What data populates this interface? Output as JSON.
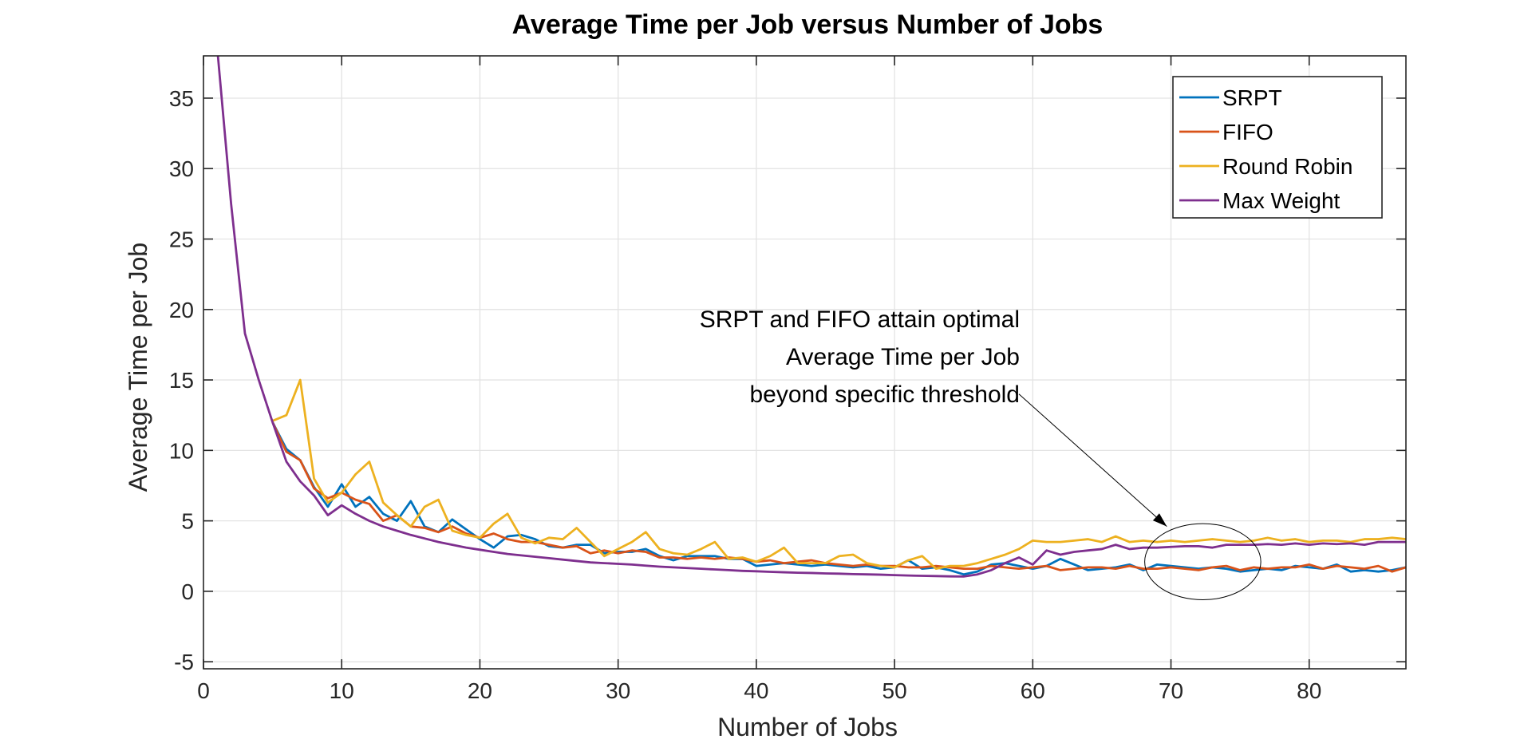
{
  "chart_data": {
    "type": "line",
    "title": "Average Time per Job versus Number of Jobs",
    "xlabel": "Number of Jobs",
    "ylabel": "Average Time per Job",
    "xlim": [
      0,
      87
    ],
    "ylim": [
      -5.5,
      38
    ],
    "xticks": [
      0,
      10,
      20,
      30,
      40,
      50,
      60,
      70,
      80
    ],
    "yticks": [
      -5,
      0,
      5,
      10,
      15,
      20,
      25,
      30,
      35
    ],
    "xtick_labels": [
      "0",
      "10",
      "20",
      "30",
      "40",
      "50",
      "60",
      "70",
      "80"
    ],
    "ytick_labels": [
      "-5",
      "0",
      "5",
      "10",
      "15",
      "20",
      "25",
      "30",
      "35"
    ],
    "grid": true,
    "legend_position": "top-right",
    "x": [
      1,
      2,
      3,
      4,
      5,
      6,
      7,
      8,
      9,
      10,
      11,
      12,
      13,
      14,
      15,
      16,
      17,
      18,
      19,
      20,
      21,
      22,
      23,
      24,
      25,
      26,
      27,
      28,
      29,
      30,
      31,
      32,
      33,
      34,
      35,
      36,
      37,
      38,
      39,
      40,
      41,
      42,
      43,
      44,
      45,
      46,
      47,
      48,
      49,
      50,
      51,
      52,
      53,
      54,
      55,
      56,
      57,
      58,
      59,
      60,
      61,
      62,
      63,
      64,
      65,
      66,
      67,
      68,
      69,
      70,
      71,
      72,
      73,
      74,
      75,
      76,
      77,
      78,
      79,
      80,
      81,
      82,
      83,
      84,
      85,
      86,
      87
    ],
    "series": [
      {
        "name": "SRPT",
        "color": "#0072BD",
        "values": [
          null,
          null,
          null,
          null,
          12.0,
          10.1,
          9.3,
          7.4,
          6.0,
          7.6,
          6.0,
          6.7,
          5.5,
          5.0,
          6.4,
          4.6,
          4.2,
          5.1,
          4.4,
          3.7,
          3.1,
          3.9,
          4.0,
          3.7,
          3.2,
          3.1,
          3.3,
          3.3,
          2.7,
          2.8,
          2.8,
          3.0,
          2.5,
          2.2,
          2.5,
          2.5,
          2.5,
          2.3,
          2.3,
          1.8,
          1.9,
          2.0,
          1.9,
          1.8,
          1.9,
          1.8,
          1.7,
          1.8,
          1.6,
          1.7,
          2.2,
          1.6,
          1.7,
          1.5,
          1.2,
          1.4,
          1.9,
          2.0,
          1.8,
          1.6,
          1.8,
          2.3,
          1.9,
          1.5,
          1.6,
          1.7,
          1.9,
          1.5,
          1.9,
          1.8,
          1.7,
          1.6,
          1.7,
          1.6,
          1.4,
          1.5,
          1.6,
          1.5,
          1.8,
          1.7,
          1.6,
          1.9,
          1.4,
          1.5,
          1.4,
          1.5,
          1.7
        ]
      },
      {
        "name": "FIFO",
        "color": "#D95319",
        "values": [
          null,
          null,
          null,
          null,
          12.0,
          9.9,
          9.3,
          7.3,
          6.6,
          7.0,
          6.5,
          6.2,
          5.0,
          5.4,
          4.6,
          4.5,
          4.2,
          4.6,
          4.1,
          3.8,
          4.1,
          3.7,
          3.5,
          3.5,
          3.3,
          3.1,
          3.2,
          2.7,
          2.9,
          2.7,
          2.9,
          2.8,
          2.4,
          2.4,
          2.3,
          2.4,
          2.3,
          2.4,
          2.3,
          2.1,
          2.2,
          2.0,
          2.1,
          2.2,
          2.0,
          1.9,
          1.8,
          1.9,
          1.8,
          1.8,
          1.7,
          1.7,
          1.8,
          1.7,
          1.6,
          1.6,
          1.8,
          1.7,
          1.6,
          1.7,
          1.8,
          1.5,
          1.6,
          1.7,
          1.7,
          1.6,
          1.8,
          1.6,
          1.6,
          1.7,
          1.6,
          1.5,
          1.7,
          1.8,
          1.5,
          1.7,
          1.6,
          1.7,
          1.7,
          1.9,
          1.6,
          1.8,
          1.7,
          1.6,
          1.8,
          1.4,
          1.7
        ]
      },
      {
        "name": "Round Robin",
        "color": "#EDB120",
        "values": [
          null,
          null,
          null,
          null,
          12.1,
          12.5,
          15.0,
          8.0,
          6.3,
          7.0,
          8.3,
          9.2,
          6.3,
          5.4,
          4.6,
          6.0,
          6.5,
          4.3,
          4.0,
          3.8,
          4.8,
          5.5,
          3.8,
          3.4,
          3.8,
          3.7,
          4.5,
          3.5,
          2.5,
          3.0,
          3.5,
          4.2,
          3.0,
          2.7,
          2.6,
          3.0,
          3.5,
          2.3,
          2.4,
          2.1,
          2.5,
          3.1,
          2.0,
          2.0,
          2.0,
          2.5,
          2.6,
          2.0,
          1.8,
          1.7,
          2.2,
          2.5,
          1.6,
          1.8,
          1.8,
          2.0,
          2.3,
          2.6,
          3.0,
          3.6,
          3.5,
          3.5,
          3.6,
          3.7,
          3.5,
          3.9,
          3.5,
          3.6,
          3.5,
          3.6,
          3.5,
          3.6,
          3.7,
          3.6,
          3.5,
          3.6,
          3.8,
          3.6,
          3.7,
          3.5,
          3.6,
          3.6,
          3.5,
          3.7,
          3.7,
          3.8,
          3.7
        ]
      },
      {
        "name": "Max Weight",
        "color": "#7E2F8E",
        "values": [
          38.5,
          27.5,
          18.3,
          15.0,
          12.0,
          9.2,
          7.8,
          6.8,
          5.4,
          6.1,
          5.5,
          5.0,
          4.6,
          4.3,
          4.0,
          3.75,
          3.5,
          3.3,
          3.1,
          2.95,
          2.8,
          2.65,
          2.55,
          2.45,
          2.35,
          2.25,
          2.15,
          2.05,
          2.0,
          1.95,
          1.9,
          1.82,
          1.75,
          1.7,
          1.65,
          1.6,
          1.55,
          1.5,
          1.45,
          1.42,
          1.38,
          1.35,
          1.32,
          1.3,
          1.27,
          1.25,
          1.22,
          1.2,
          1.18,
          1.15,
          1.12,
          1.1,
          1.08,
          1.06,
          1.05,
          1.2,
          1.5,
          2.0,
          2.4,
          1.9,
          2.9,
          2.6,
          2.8,
          2.9,
          3.0,
          3.3,
          3.0,
          3.1,
          3.1,
          3.15,
          3.2,
          3.2,
          3.1,
          3.3,
          3.3,
          3.3,
          3.35,
          3.3,
          3.4,
          3.3,
          3.4,
          3.35,
          3.4,
          3.3,
          3.5,
          3.5,
          3.5
        ]
      }
    ],
    "annotation": {
      "lines": [
        "SRPT and FIFO attain optimal",
        "Average Time per Job",
        "beyond specific threshold"
      ],
      "arrow_from": [
        59.0,
        14.0
      ],
      "arrow_to": [
        69.7,
        4.6
      ],
      "ellipse_center": [
        72.3,
        2.1
      ],
      "ellipse_radius": [
        4.2,
        2.7
      ]
    }
  }
}
